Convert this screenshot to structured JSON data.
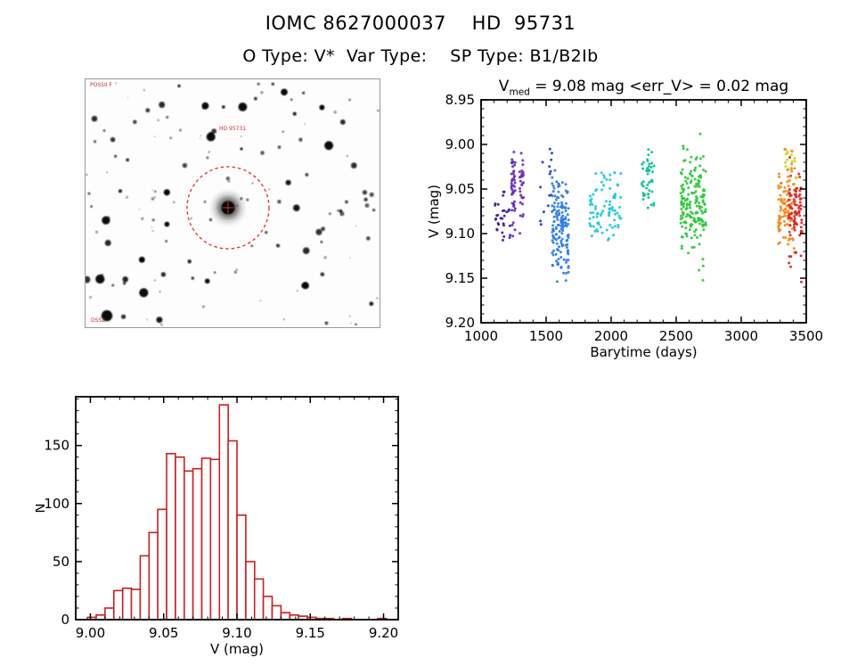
{
  "page": {
    "title": "IOMC 8627000037    HD  95731",
    "subtitle": "O Type: V*  Var Type:    SP Type: B1/B2Ib"
  },
  "finder": {
    "survey_label": "POSSII F",
    "target_label": "HD 95731",
    "bottom_label": "DSS2",
    "circle_color": "#e03030",
    "star_seed": 20,
    "star_count": 150
  },
  "chart_data": [
    {
      "type": "scatter",
      "title": "V_med = 9.08 mag <err_V> = 0.02 mag",
      "title_v": "V",
      "title_sub": "med",
      "title_rest": " = 9.08 mag <err_V> = 0.02 mag",
      "xlabel": "Barytime (days)",
      "ylabel": "V (mag)",
      "xlim": [
        1000,
        3500
      ],
      "ylim": [
        8.95,
        9.2
      ],
      "y_inverted": true,
      "xticks": {
        "values": [
          1000,
          1500,
          2000,
          2500,
          3000,
          3500
        ],
        "labels": [
          "1000",
          "1500",
          "2000",
          "2500",
          "3000",
          "3500"
        ]
      },
      "yticks": {
        "values": [
          8.95,
          9.0,
          9.05,
          9.1,
          9.15,
          9.2
        ],
        "labels": [
          "8.95",
          "9.00",
          "9.05",
          "9.10",
          "9.15",
          "9.20"
        ]
      },
      "x_minor_step": 100,
      "y_minor_step": 0.01,
      "point_seed": 7,
      "clusters": [
        {
          "x0": 1120,
          "x1": 1210,
          "cols": 3,
          "n": 30,
          "color": "#3b1f9b",
          "mean": 9.082,
          "sd": 0.016,
          "min": 9.05,
          "max": 9.115
        },
        {
          "x0": 1248,
          "x1": 1312,
          "cols": 2,
          "n": 75,
          "color": "#6a2fb8",
          "mean": 9.045,
          "sd": 0.022,
          "min": 9.008,
          "max": 9.112
        },
        {
          "x0": 1470,
          "x1": 1530,
          "cols": 2,
          "n": 14,
          "color": "#2436c8",
          "mean": 9.05,
          "sd": 0.03,
          "min": 9.0,
          "max": 9.105
        },
        {
          "x0": 1555,
          "x1": 1660,
          "cols": 4,
          "n": 150,
          "color": "#2e7de0",
          "mean": 9.092,
          "sd": 0.027,
          "min": 9.028,
          "max": 9.172
        },
        {
          "x0": 1850,
          "x1": 2060,
          "cols": 6,
          "n": 85,
          "color": "#1fc8d8",
          "mean": 9.072,
          "sd": 0.02,
          "min": 9.03,
          "max": 9.122
        },
        {
          "x0": 2248,
          "x1": 2318,
          "cols": 3,
          "n": 48,
          "color": "#12c09a",
          "mean": 9.04,
          "sd": 0.016,
          "min": 9.005,
          "max": 9.078
        },
        {
          "x0": 2548,
          "x1": 2715,
          "cols": 6,
          "n": 180,
          "color": "#2ec83c",
          "mean": 9.068,
          "sd": 0.03,
          "min": 8.988,
          "max": 9.155
        },
        {
          "x0": 3352,
          "x1": 3420,
          "cols": 3,
          "n": 16,
          "color": "#c9d418",
          "mean": 9.02,
          "sd": 0.008,
          "min": 9.006,
          "max": 9.04
        },
        {
          "x0": 3298,
          "x1": 3398,
          "cols": 4,
          "n": 105,
          "color": "#f08a1e",
          "mean": 9.068,
          "sd": 0.024,
          "min": 9.004,
          "max": 9.142
        },
        {
          "x0": 3378,
          "x1": 3455,
          "cols": 3,
          "n": 85,
          "color": "#da2828",
          "mean": 9.08,
          "sd": 0.026,
          "min": 9.012,
          "max": 9.158
        }
      ]
    },
    {
      "type": "histogram",
      "xlabel": "V (mag)",
      "ylabel": "N",
      "xlim": [
        8.99,
        9.21
      ],
      "ylim": [
        0,
        192
      ],
      "xticks": {
        "values": [
          9.0,
          9.05,
          9.1,
          9.15,
          9.2
        ],
        "labels": [
          "9.00",
          "9.05",
          "9.10",
          "9.15",
          "9.20"
        ]
      },
      "yticks": {
        "values": [
          0,
          50,
          100,
          150
        ],
        "labels": [
          "0",
          "50",
          "100",
          "150"
        ]
      },
      "x_minor_step": 0.01,
      "y_minor_step": 10,
      "bar_color": "#c82020",
      "bin_start": 8.998,
      "bin_width": 0.006,
      "counts": [
        2,
        4,
        10,
        25,
        27,
        26,
        55,
        75,
        95,
        143,
        140,
        128,
        130,
        139,
        138,
        185,
        154,
        90,
        50,
        35,
        20,
        12,
        6,
        4,
        3,
        2,
        1,
        1,
        0,
        1,
        0,
        0,
        0,
        1
      ]
    }
  ]
}
